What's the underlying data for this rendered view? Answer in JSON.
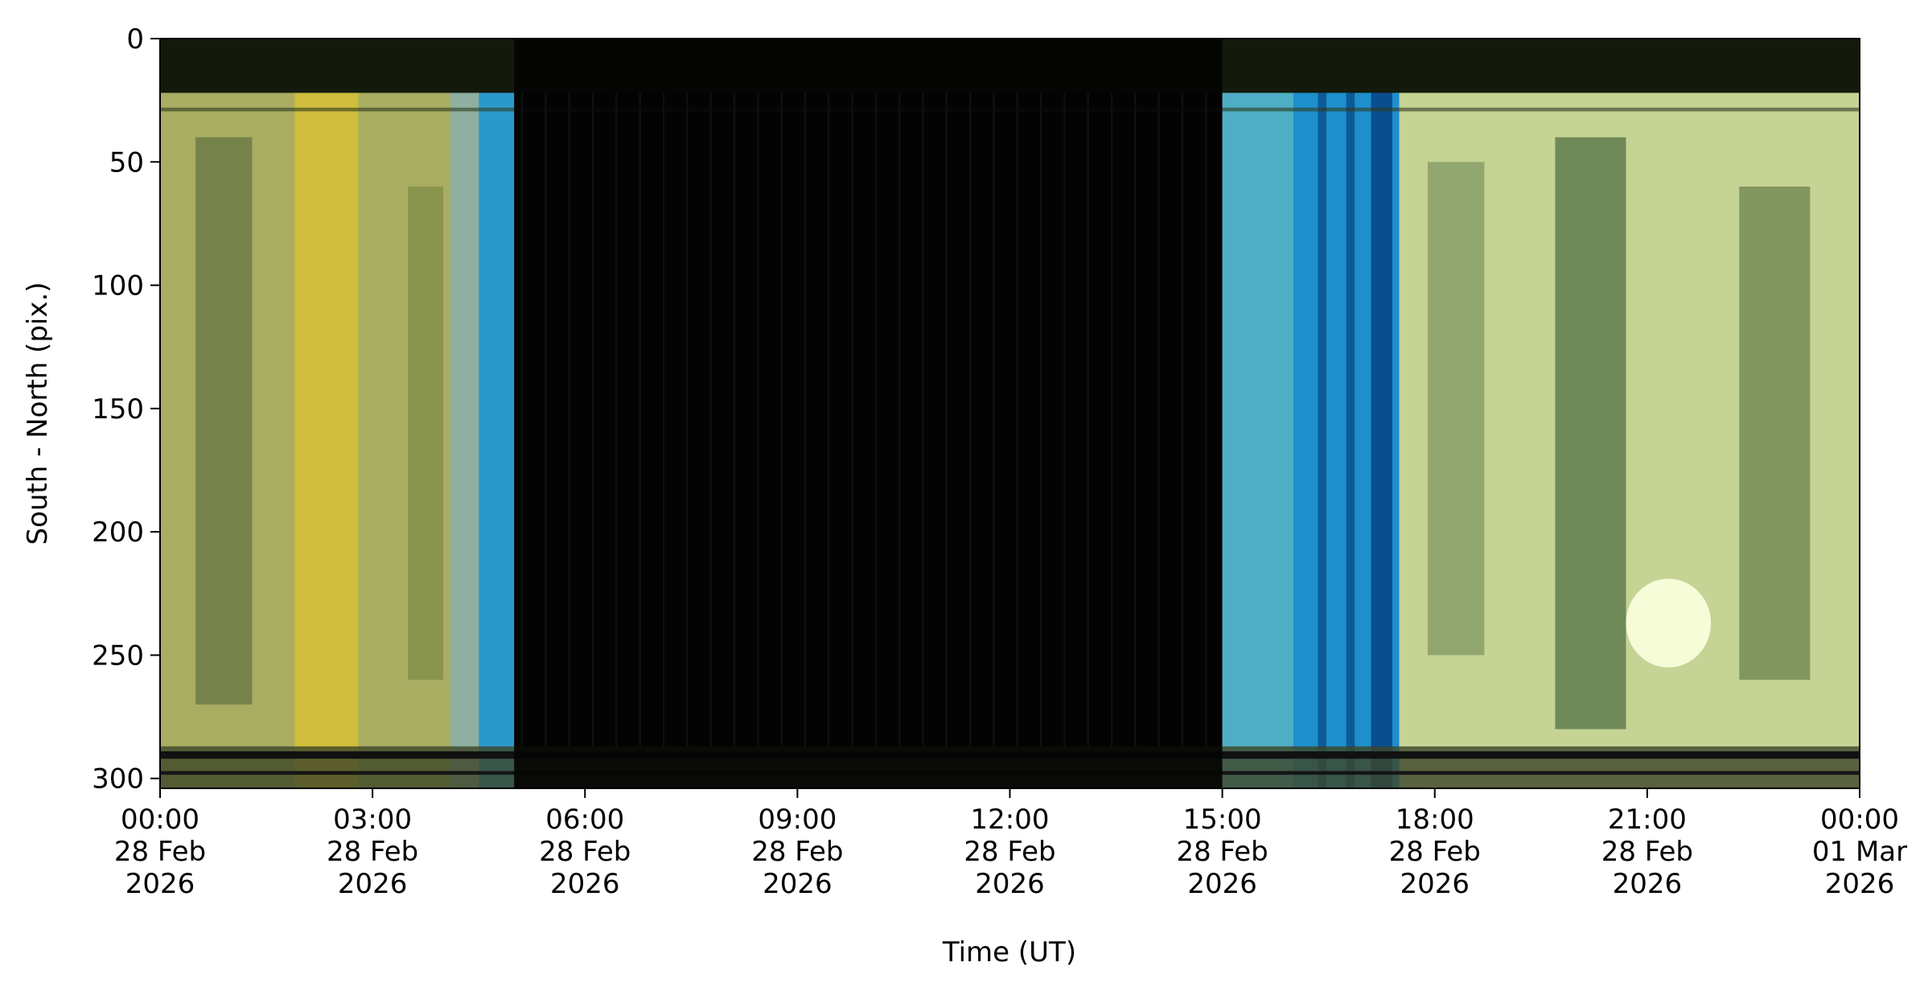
{
  "chart_data": {
    "type": "keogram",
    "xlabel": "Time (UT)",
    "ylabel": "South - North (pix.)",
    "xlim": [
      "2026-02-28 00:00",
      "2026-03-01 00:00"
    ],
    "xticks": [
      {
        "value": "2026-02-28 00:00",
        "label": "00:00\n28 Feb\n2026"
      },
      {
        "value": "2026-02-28 03:00",
        "label": "03:00\n28 Feb\n2026"
      },
      {
        "value": "2026-02-28 06:00",
        "label": "06:00\n28 Feb\n2026"
      },
      {
        "value": "2026-02-28 09:00",
        "label": "09:00\n28 Feb\n2026"
      },
      {
        "value": "2026-02-28 12:00",
        "label": "12:00\n28 Feb\n2026"
      },
      {
        "value": "2026-02-28 15:00",
        "label": "15:00\n28 Feb\n2026"
      },
      {
        "value": "2026-02-28 18:00",
        "label": "18:00\n28 Feb\n2026"
      },
      {
        "value": "2026-02-28 21:00",
        "label": "21:00\n28 Feb\n2026"
      },
      {
        "value": "2026-03-01 00:00",
        "label": "00:00\n01 Mar\n2026"
      }
    ],
    "ylim": [
      0,
      304
    ],
    "y_inverted": true,
    "yticks": [
      0,
      50,
      100,
      150,
      200,
      250,
      300
    ]
  }
}
